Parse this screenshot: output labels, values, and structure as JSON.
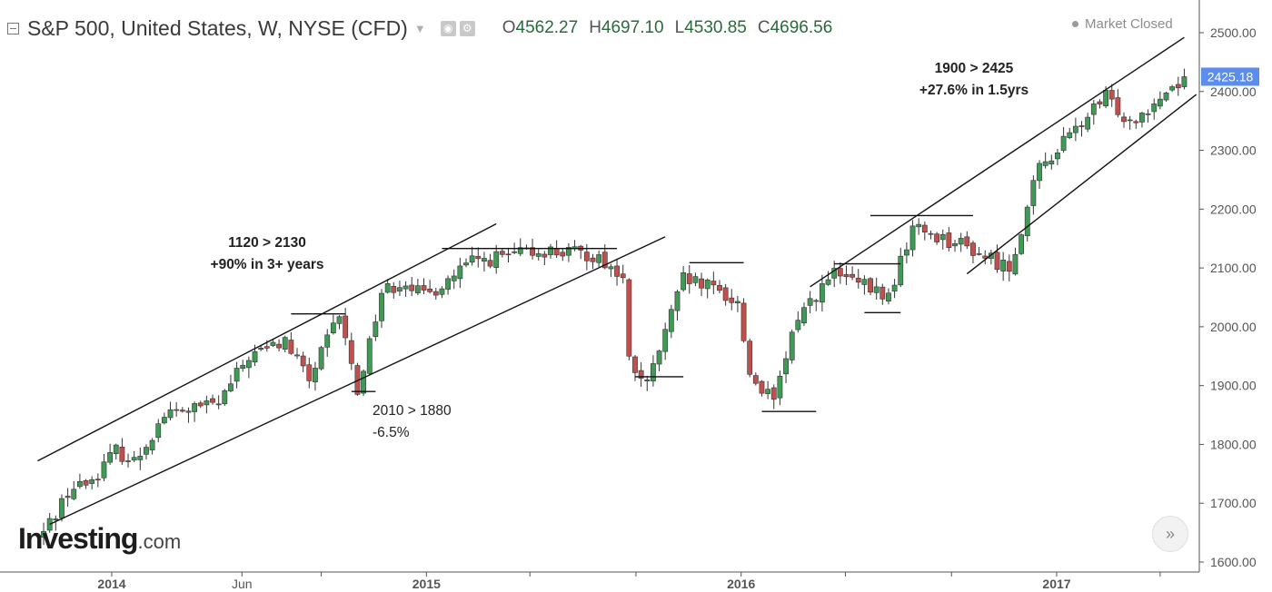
{
  "header": {
    "title": "S&P 500, United States, W, NYSE (CFD)",
    "caret_icon": "caret-down-icon",
    "ohlc": [
      {
        "label": "O",
        "value": "4562.27"
      },
      {
        "label": "H",
        "value": "4697.10"
      },
      {
        "label": "L",
        "value": "4530.85"
      },
      {
        "label": "C",
        "value": "4696.56"
      }
    ],
    "status": "Market Closed"
  },
  "logo": {
    "brand": "Investing",
    "suffix": ".com"
  },
  "nav_icon": "double-chevron-right-icon",
  "colors": {
    "up": "#3e9a54",
    "down": "#c0504d",
    "price_tag": "#5b8def"
  },
  "chart_data": {
    "type": "candlestick",
    "interval": "weekly",
    "current_price": "2425.18",
    "ylim": [
      1595,
      2520
    ],
    "y_ticks": [
      "1600.00",
      "1700.00",
      "1800.00",
      "1900.00",
      "2000.00",
      "2100.00",
      "2200.00",
      "2300.00",
      "2400.00",
      "2500.00"
    ],
    "x_ticks": [
      "2014",
      "Jun",
      "2015",
      "2016",
      "2017"
    ],
    "grid": false,
    "close_path": [
      [
        "2013-10-14",
        1650
      ],
      [
        "2013-11-11",
        1720
      ],
      [
        "2013-12-09",
        1740
      ],
      [
        "2014-01-06",
        1790
      ],
      [
        "2014-01-27",
        1770
      ],
      [
        "2014-03-03",
        1850
      ],
      [
        "2014-05-05",
        1870
      ],
      [
        "2014-06-09",
        1950
      ],
      [
        "2014-07-21",
        1975
      ],
      [
        "2014-08-18",
        1910
      ],
      [
        "2014-09-22",
        2020
      ],
      [
        "2014-10-13",
        1890
      ],
      [
        "2014-11-10",
        2060
      ],
      [
        "2014-12-08",
        2080
      ],
      [
        "2014-12-29",
        2050
      ],
      [
        "2015-02-23",
        2110
      ],
      [
        "2015-05-18",
        2130
      ],
      [
        "2015-07-20",
        2120
      ],
      [
        "2015-08-17",
        2080
      ],
      [
        "2015-08-24",
        1940
      ],
      [
        "2015-09-14",
        1900
      ],
      [
        "2015-10-26",
        2080
      ],
      [
        "2015-12-07",
        2060
      ],
      [
        "2015-12-28",
        2040
      ],
      [
        "2016-01-11",
        1920
      ],
      [
        "2016-02-08",
        1870
      ],
      [
        "2016-03-07",
        2020
      ],
      [
        "2016-04-18",
        2090
      ],
      [
        "2016-06-20",
        2050
      ],
      [
        "2016-07-18",
        2170
      ],
      [
        "2016-09-12",
        2140
      ],
      [
        "2016-11-07",
        2100
      ],
      [
        "2016-12-12",
        2270
      ],
      [
        "2017-02-27",
        2390
      ],
      [
        "2017-03-27",
        2350
      ],
      [
        "2017-05-29",
        2425
      ]
    ],
    "annotations": [
      {
        "lines": [
          "1120 > 2130",
          "+90% in 3+ years"
        ]
      },
      {
        "lines": [
          "2010 > 1880",
          "-6.5%"
        ]
      },
      {
        "lines": [
          "1900 > 2425",
          "+27.6% in 1.5yrs"
        ]
      }
    ],
    "trendlines": [
      {
        "from": [
          "2013-10-07",
          1772
        ],
        "to": [
          "2015-03-23",
          2175
        ]
      },
      {
        "from": [
          "2013-10-21",
          1664
        ],
        "to": [
          "2015-10-05",
          2153
        ]
      },
      {
        "from": [
          "2016-03-21",
          2068
        ],
        "to": [
          "2017-05-29",
          2492
        ]
      },
      {
        "from": [
          "2016-09-19",
          2090
        ],
        "to": [
          "2017-06-12",
          2395
        ]
      }
    ],
    "levels": [
      {
        "from": [
          "2014-07-28",
          2022
        ],
        "to": [
          "2014-09-29",
          2022
        ]
      },
      {
        "from": [
          "2014-10-06",
          1890
        ],
        "to": [
          "2014-11-03",
          1890
        ]
      },
      {
        "from": [
          "2015-01-19",
          2133
        ],
        "to": [
          "2015-08-10",
          2133
        ]
      },
      {
        "from": [
          "2015-08-31",
          1915
        ],
        "to": [
          "2015-10-26",
          1915
        ]
      },
      {
        "from": [
          "2015-11-02",
          2109
        ],
        "to": [
          "2016-01-04",
          2109
        ]
      },
      {
        "from": [
          "2016-01-25",
          1856
        ],
        "to": [
          "2016-03-28",
          1856
        ]
      },
      {
        "from": [
          "2016-04-18",
          2107
        ],
        "to": [
          "2016-07-04",
          2107
        ]
      },
      {
        "from": [
          "2016-05-23",
          2024
        ],
        "to": [
          "2016-07-04",
          2024
        ]
      },
      {
        "from": [
          "2016-05-30",
          2189
        ],
        "to": [
          "2016-09-26",
          2189
        ]
      }
    ]
  }
}
